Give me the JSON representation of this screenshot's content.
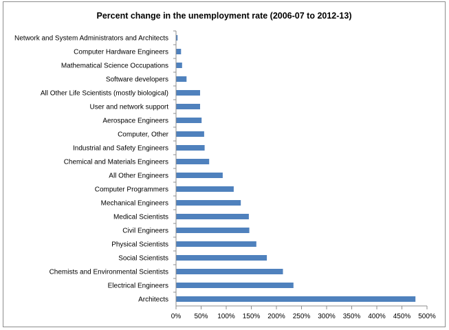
{
  "chart_data": {
    "type": "bar",
    "orientation": "horizontal",
    "title": "Percent change in the unemployment rate (2006-07 to 2012-13)",
    "xlabel": "",
    "ylabel": "",
    "xlim": [
      0,
      500
    ],
    "x_tick_values": [
      0,
      50,
      100,
      150,
      200,
      250,
      300,
      350,
      400,
      450,
      500
    ],
    "x_tick_labels": [
      "0%",
      "50%",
      "100%",
      "150%",
      "200%",
      "250%",
      "300%",
      "350%",
      "400%",
      "450%",
      "500%"
    ],
    "grid": false,
    "legend": "none",
    "bar_color": "#4f81bd",
    "categories": [
      "Network and System Administrators and Architects",
      "Computer Hardware Engineers",
      "Mathematical Science Occupations",
      "Software developers",
      "All Other Life Scientists (mostly biological)",
      "User and network support",
      "Aerospace Engineers",
      "Computer, Other",
      "Industrial and Safety Engineers",
      "Chemical and Materials Engineers",
      "All Other Engineers",
      "Computer Programmers",
      "Mechanical Engineers",
      "Medical Scientists",
      "Civil Engineers",
      "Physical Scientists",
      "Social Scientists",
      "Chemists and Environmental Scientists",
      "Electrical Engineers",
      "Architects"
    ],
    "values": [
      3,
      10,
      12,
      21,
      48,
      48,
      51,
      56,
      57,
      66,
      93,
      115,
      129,
      145,
      146,
      160,
      181,
      213,
      234,
      477
    ]
  }
}
